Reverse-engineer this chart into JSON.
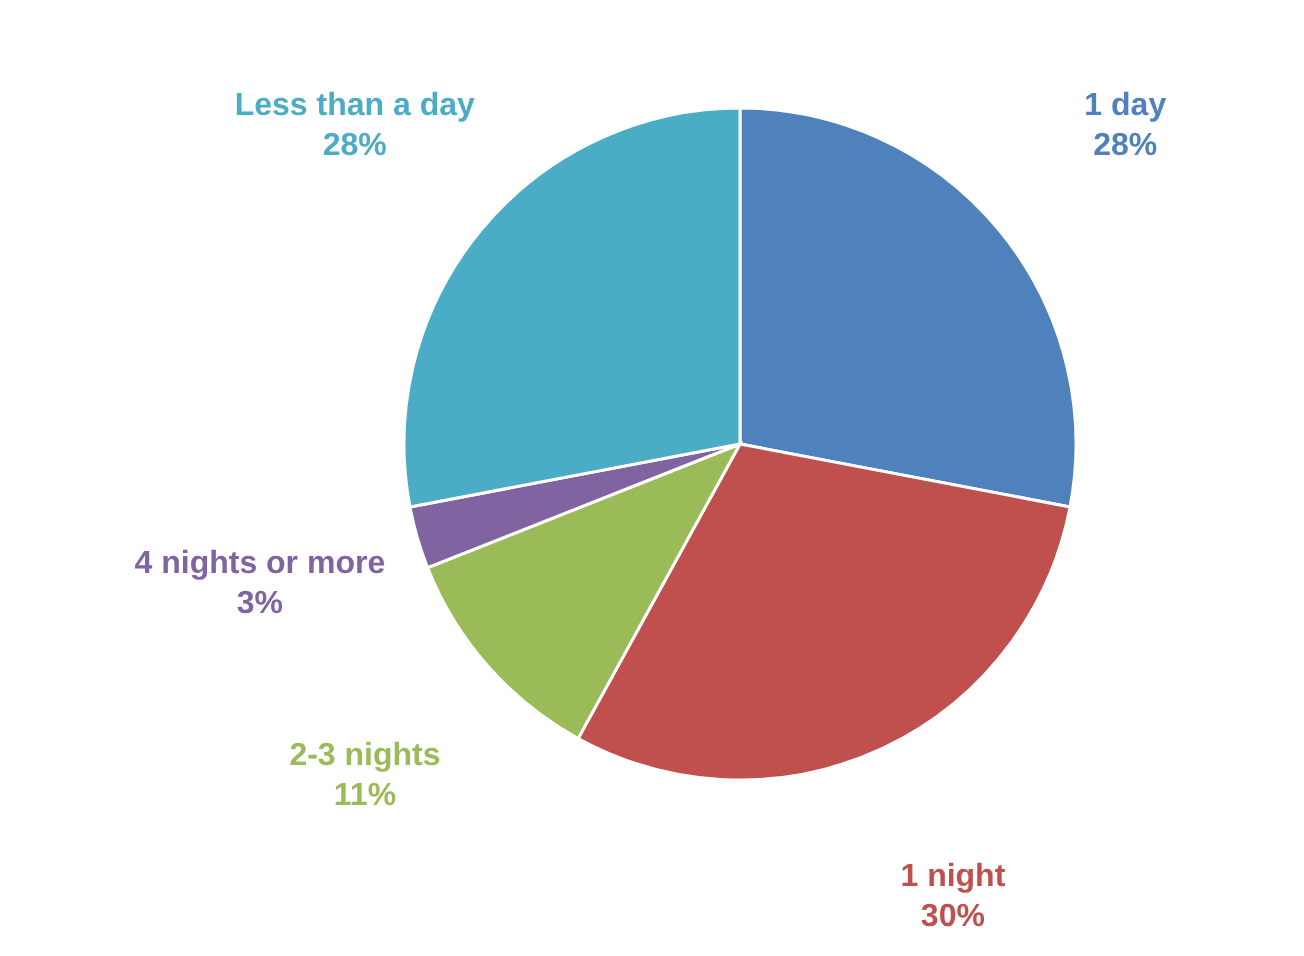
{
  "chart_data": {
    "type": "pie",
    "categories": [
      "1 day",
      "1 night",
      "2-3 nights",
      "4 nights or more",
      "Less than a day"
    ],
    "values": [
      28,
      30,
      11,
      3,
      28
    ],
    "colors": [
      "#4f81bd",
      "#c0504d",
      "#9bbb59",
      "#8064a2",
      "#4bacc6"
    ],
    "value_labels": [
      "28%",
      "30%",
      "11%",
      "3%",
      "28%"
    ],
    "legend": false
  }
}
